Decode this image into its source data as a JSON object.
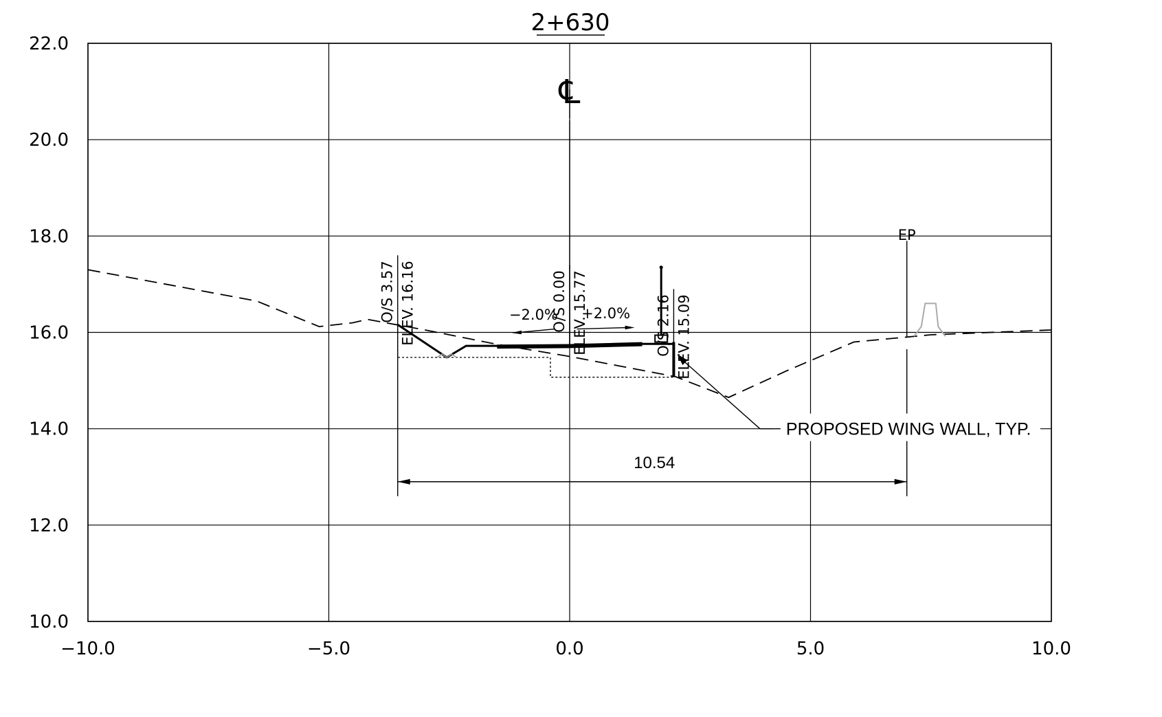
{
  "section": {
    "title": "2+630",
    "centerline_symbol": "℄"
  },
  "chart_data": {
    "type": "cross-section",
    "xlim": [
      -10.0,
      10.0
    ],
    "ylim": [
      10.0,
      22.0
    ],
    "x_ticks": [
      -10.0,
      -5.0,
      0.0,
      5.0,
      10.0
    ],
    "y_ticks": [
      10.0,
      12.0,
      14.0,
      16.0,
      18.0,
      20.0,
      22.0
    ],
    "x_tick_labels": [
      "−10.0",
      "−5.0",
      "0.0",
      "5.0",
      "10.0"
    ],
    "y_tick_labels": [
      "10.0",
      "12.0",
      "14.0",
      "16.0",
      "18.0",
      "20.0",
      "22.0"
    ],
    "grid": true,
    "existing_ground": [
      [
        -10.0,
        17.3
      ],
      [
        -6.5,
        16.65
      ],
      [
        -5.2,
        16.12
      ],
      [
        -4.5,
        16.2
      ],
      [
        -4.2,
        16.27
      ],
      [
        -3.0,
        16.05
      ],
      [
        -1.5,
        15.75
      ],
      [
        0.0,
        15.5
      ],
      [
        2.2,
        15.08
      ],
      [
        3.3,
        14.65
      ],
      [
        4.5,
        15.2
      ],
      [
        5.9,
        15.8
      ],
      [
        7.5,
        15.95
      ],
      [
        10.0,
        16.05
      ]
    ],
    "proposed_profile": [
      [
        -3.57,
        16.16
      ],
      [
        -2.55,
        15.48
      ],
      [
        -2.15,
        15.72
      ],
      [
        -1.5,
        15.72
      ],
      [
        0.0,
        15.72
      ],
      [
        1.5,
        15.76
      ],
      [
        2.16,
        15.76
      ]
    ],
    "pavement": [
      [
        -1.5,
        15.67
      ],
      [
        0.0,
        15.68
      ],
      [
        1.5,
        15.72
      ]
    ],
    "subbase_outline": [
      [
        -3.57,
        16.16
      ],
      [
        -3.57,
        15.48
      ],
      [
        -0.4,
        15.48
      ],
      [
        -0.4,
        15.07
      ],
      [
        2.16,
        15.07
      ]
    ],
    "wing_wall": {
      "x": 2.16,
      "top": 15.8,
      "bottom": 15.07
    },
    "barrier": {
      "x": 7.2,
      "base": 15.92,
      "top": 16.6
    },
    "offset_labels": [
      {
        "os": "O/S  3.57",
        "elev": "ELEV.  16.16",
        "x": -3.57,
        "top": 17.6
      },
      {
        "os": "O/S  0.00",
        "elev": "ELEV.  15.77",
        "x": 0.0,
        "top": 17.4
      },
      {
        "os": "O/S  2.16",
        "elev": "ELEV.  15.09",
        "x": 2.16,
        "top": 16.9
      }
    ],
    "slopes": [
      {
        "text": "−2.0%",
        "x": -0.75,
        "y": 16.15
      },
      {
        "text": "+2.0%",
        "x": 0.75,
        "y": 16.18
      }
    ],
    "ep_label": {
      "text": "EP",
      "x": 7.0,
      "y": 18.05
    },
    "dimension": {
      "text": "10.54",
      "from": -3.57,
      "to": 7.0,
      "y": 12.9
    },
    "callout": {
      "text": "PROPOSED WING WALL, TYP.",
      "target": [
        2.16,
        15.55
      ],
      "elbow": [
        3.95,
        14.0
      ]
    }
  }
}
